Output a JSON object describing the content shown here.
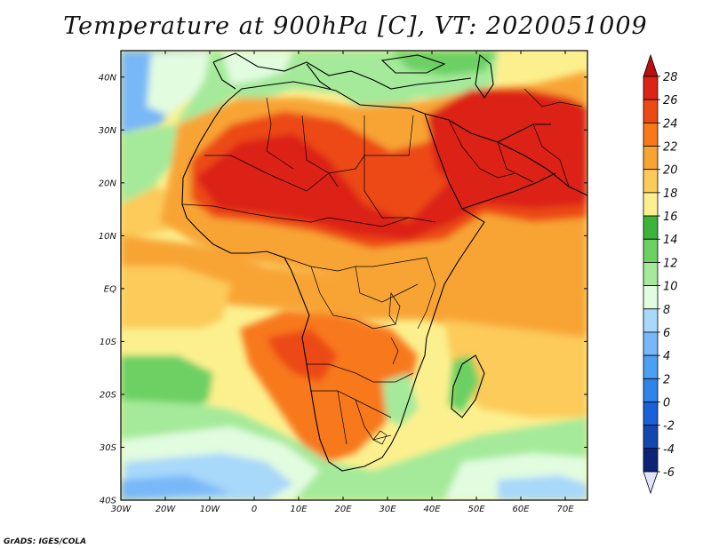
{
  "title": "Temperature at 900hPa [C], VT: 2020051009",
  "credit": "GrADS: IGES/COLA",
  "axes": {
    "lon_labels": [
      "30W",
      "20W",
      "10W",
      "0",
      "10E",
      "20E",
      "30E",
      "40E",
      "50E",
      "60E",
      "70E"
    ],
    "lat_labels": [
      "40N",
      "30N",
      "20N",
      "10N",
      "EQ",
      "10S",
      "20S",
      "30S",
      "40S"
    ]
  },
  "colorbar": {
    "labels": [
      "28",
      "26",
      "24",
      "22",
      "20",
      "18",
      "16",
      "14",
      "12",
      "10",
      "8",
      "6",
      "4",
      "2",
      "0",
      "-2",
      "-4",
      "-6"
    ],
    "colors": [
      "#dc2414",
      "#ec4a14",
      "#f8781a",
      "#f8a434",
      "#fccb5a",
      "#fcf08e",
      "#3cb43c",
      "#6cd064",
      "#a4ea9a",
      "#e2fce0",
      "#a8d8fa",
      "#78b8f8",
      "#4aa0f4",
      "#2e84e8",
      "#1a60d8",
      "#1446b0",
      "#0c2478"
    ],
    "top_arrow_color": "#b81010",
    "bottom_arrow_color": "#e0e4fc"
  },
  "map": {
    "extent": {
      "lon_min": -30,
      "lon_max": 75,
      "lat_min": -40,
      "lat_max": 45
    },
    "variable": "Temperature at 900hPa",
    "units": "C"
  }
}
